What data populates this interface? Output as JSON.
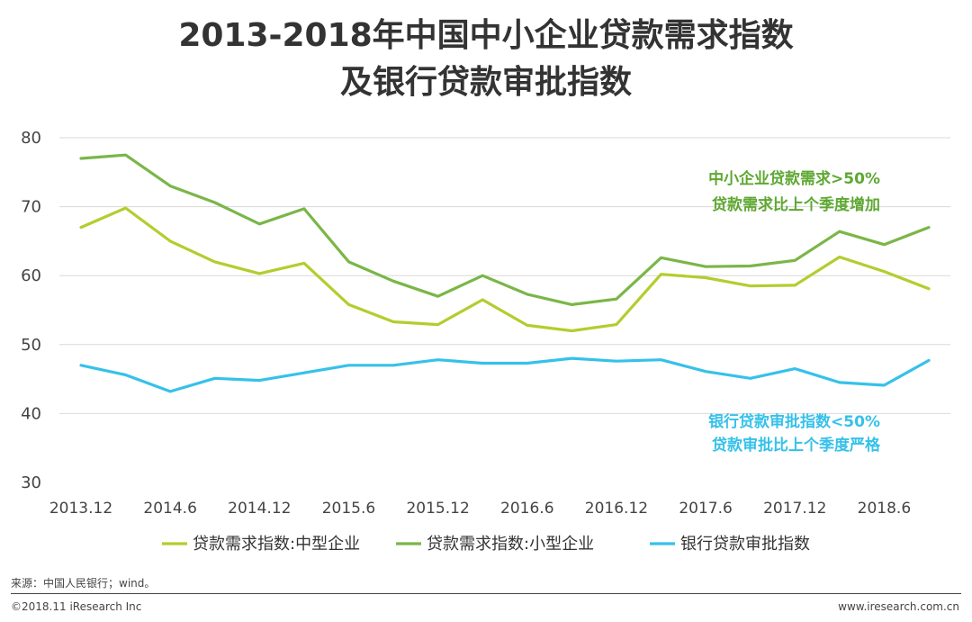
{
  "chart_data": {
    "type": "line",
    "title_line1": "2013-2018年中国中小企业贷款需求指数",
    "title_line2": "及银行贷款审批指数",
    "ylim": [
      30,
      80
    ],
    "yticks": [
      30,
      40,
      50,
      60,
      70,
      80
    ],
    "x": [
      "2013.12",
      "2014.3",
      "2014.6",
      "2014.9",
      "2014.12",
      "2015.3",
      "2015.6",
      "2015.9",
      "2015.12",
      "2016.3",
      "2016.6",
      "2016.9",
      "2016.12",
      "2017.3",
      "2017.6",
      "2017.9",
      "2017.12",
      "2018.3",
      "2018.6",
      "2018.9"
    ],
    "xtick_labels": [
      "2013.12",
      "2014.6",
      "2014.12",
      "2015.6",
      "2015.12",
      "2016.6",
      "2016.12",
      "2017.6",
      "2017.12",
      "2018.6"
    ],
    "grid": true,
    "legend_position": "bottom",
    "series": [
      {
        "name": "贷款需求指数:中型企业",
        "color": "#b5cc2e",
        "values": [
          67.0,
          69.8,
          65.0,
          62.0,
          60.3,
          61.8,
          55.8,
          53.3,
          52.9,
          56.5,
          52.8,
          52.0,
          52.9,
          60.2,
          59.7,
          58.5,
          58.6,
          62.7,
          60.6,
          58.1
        ]
      },
      {
        "name": "贷款需求指数:小型企业",
        "color": "#7ab648",
        "values": [
          77.0,
          77.5,
          73.0,
          70.6,
          67.5,
          69.7,
          62.0,
          59.2,
          57.0,
          60.0,
          57.3,
          55.8,
          56.6,
          62.6,
          61.3,
          61.4,
          62.2,
          66.4,
          64.5,
          67.0
        ]
      },
      {
        "name": "银行贷款审批指数",
        "color": "#36c1ea",
        "values": [
          47.0,
          45.6,
          43.2,
          45.1,
          44.8,
          45.9,
          47.0,
          47.0,
          47.8,
          47.3,
          47.3,
          48.0,
          47.6,
          47.8,
          46.1,
          45.1,
          46.5,
          44.5,
          44.1,
          47.7
        ]
      }
    ],
    "annotations": [
      {
        "line1": "中小企业贷款需求>50%",
        "line2": "贷款需求比上个季度增加",
        "color": "#5ea832"
      },
      {
        "line1": "银行贷款审批指数<50%",
        "line2": "贷款审批比上个季度严格",
        "color": "#36c1ea"
      }
    ]
  },
  "footer": {
    "source": "来源：中国人民银行；wind。",
    "copyright": "©2018.11 iResearch Inc",
    "website": "www.iresearch.com.cn"
  }
}
